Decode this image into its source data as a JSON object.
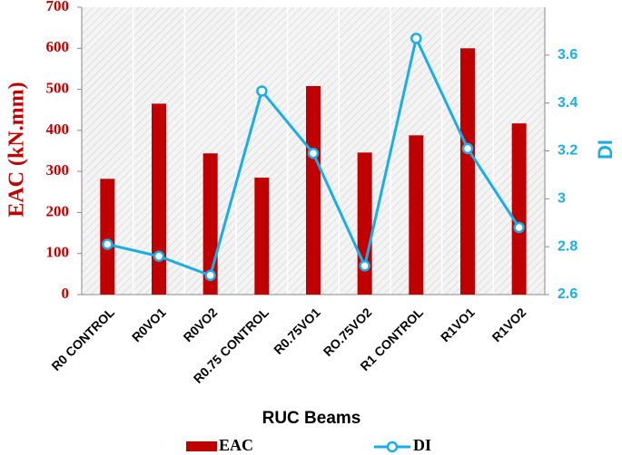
{
  "chart_data": {
    "type": "bar",
    "x_label": "RUC Beams",
    "y_label": "EAC  (kN.mm)",
    "y2_label": "DI",
    "categories": [
      "R0 CONTROL",
      "R0VO1",
      "R0VO2",
      "R0.75 CONTROL",
      "R0.75VO1",
      "RO.75VO2",
      "R1 CONTROL",
      "R1VO1",
      "R1VO2"
    ],
    "series": [
      {
        "name": "EAC",
        "type": "bar",
        "color": "#c00000",
        "values": [
          282,
          465,
          344,
          285,
          508,
          346,
          388,
          600,
          417
        ]
      },
      {
        "name": "DI",
        "type": "line",
        "axis": "y2",
        "color": "#1aaee5",
        "values": [
          2.81,
          2.76,
          2.68,
          3.45,
          3.19,
          2.72,
          3.67,
          3.21,
          2.88
        ]
      }
    ],
    "ylim": [
      0,
      700
    ],
    "yticks": [
      0,
      100,
      200,
      300,
      400,
      500,
      600,
      700
    ],
    "y2lim": [
      2.6,
      3.8
    ],
    "y2ticks": [
      2.6,
      2.8,
      3,
      3.2,
      3.4,
      3.6
    ],
    "grid": true
  }
}
